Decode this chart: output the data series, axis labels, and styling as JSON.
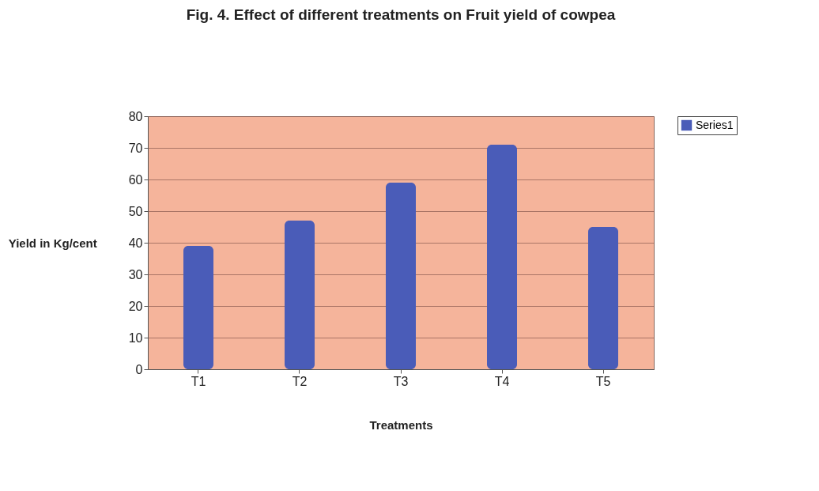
{
  "chart_data": {
    "type": "bar",
    "title": "Fig. 4.  Effect of different treatments on Fruit yield of cowpea",
    "xlabel": "Treatments",
    "ylabel": "Yield in Kg/cent",
    "categories": [
      "T1",
      "T2",
      "T3",
      "T4",
      "T5"
    ],
    "series": [
      {
        "name": "Series1",
        "color": "#4a5cb8",
        "values": [
          39,
          47,
          59,
          71,
          45
        ]
      }
    ],
    "ylim": [
      0,
      80
    ],
    "yticks": [
      0,
      10,
      20,
      30,
      40,
      50,
      60,
      70,
      80
    ],
    "grid": "y",
    "legend": "right"
  }
}
